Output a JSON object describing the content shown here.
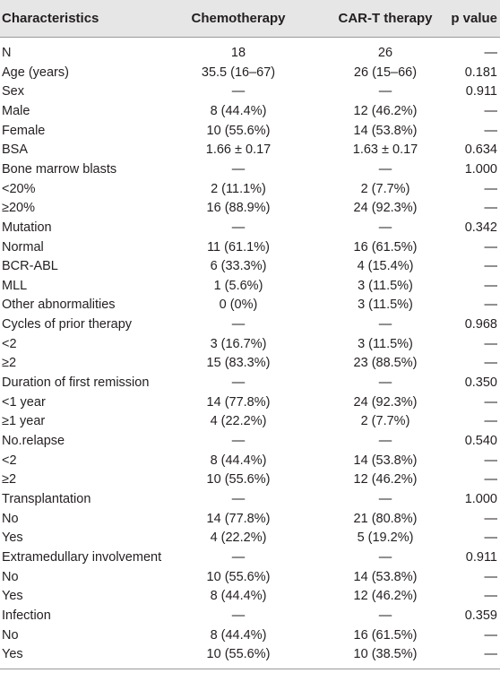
{
  "table": {
    "header": [
      "Characteristics",
      "Chemotherapy",
      "CAR-T therapy",
      "p value"
    ],
    "rows": [
      [
        "N",
        "18",
        "26",
        "—"
      ],
      [
        "Age (years)",
        "35.5 (16–67)",
        "26 (15–66)",
        "0.181"
      ],
      [
        "Sex",
        "—",
        "—",
        "0.911"
      ],
      [
        "Male",
        "8 (44.4%)",
        "12 (46.2%)",
        "—"
      ],
      [
        "Female",
        "10 (55.6%)",
        "14 (53.8%)",
        "—"
      ],
      [
        "BSA",
        "1.66 ± 0.17",
        "1.63 ± 0.17",
        "0.634"
      ],
      [
        "Bone marrow blasts",
        "—",
        "—",
        "1.000"
      ],
      [
        "<20%",
        "2 (11.1%)",
        "2 (7.7%)",
        "—"
      ],
      [
        "≥20%",
        "16 (88.9%)",
        "24 (92.3%)",
        "—"
      ],
      [
        "Mutation",
        "—",
        "—",
        "0.342"
      ],
      [
        "Normal",
        "11 (61.1%)",
        "16 (61.5%)",
        "—"
      ],
      [
        "BCR-ABL",
        "6 (33.3%)",
        "4 (15.4%)",
        "—"
      ],
      [
        "MLL",
        "1 (5.6%)",
        "3 (11.5%)",
        "—"
      ],
      [
        "Other abnormalities",
        "0 (0%)",
        "3 (11.5%)",
        "—"
      ],
      [
        "Cycles of prior therapy",
        "—",
        "—",
        "0.968"
      ],
      [
        "<2",
        "3 (16.7%)",
        "3 (11.5%)",
        "—"
      ],
      [
        "≥2",
        "15 (83.3%)",
        "23 (88.5%)",
        "—"
      ],
      [
        "Duration of first remission",
        "—",
        "—",
        "0.350"
      ],
      [
        "<1 year",
        "14 (77.8%)",
        "24 (92.3%)",
        "—"
      ],
      [
        "≥1 year",
        "4 (22.2%)",
        "2 (7.7%)",
        "—"
      ],
      [
        "No.relapse",
        "—",
        "—",
        "0.540"
      ],
      [
        "<2",
        "8 (44.4%)",
        "14 (53.8%)",
        "—"
      ],
      [
        "≥2",
        "10 (55.6%)",
        "12 (46.2%)",
        "—"
      ],
      [
        "Transplantation",
        "—",
        "—",
        "1.000"
      ],
      [
        "No",
        "14 (77.8%)",
        "21 (80.8%)",
        "—"
      ],
      [
        "Yes",
        "4 (22.2%)",
        "5 (19.2%)",
        "—"
      ],
      [
        "Extramedullary involvement",
        "—",
        "—",
        "0.911"
      ],
      [
        "No",
        "10 (55.6%)",
        "14 (53.8%)",
        "—"
      ],
      [
        "Yes",
        "8 (44.4%)",
        "12 (46.2%)",
        "—"
      ],
      [
        "Infection",
        "—",
        "—",
        "0.359"
      ],
      [
        "No",
        "8 (44.4%)",
        "16 (61.5%)",
        "—"
      ],
      [
        "Yes",
        "10 (55.6%)",
        "10 (38.5%)",
        "—"
      ]
    ]
  }
}
